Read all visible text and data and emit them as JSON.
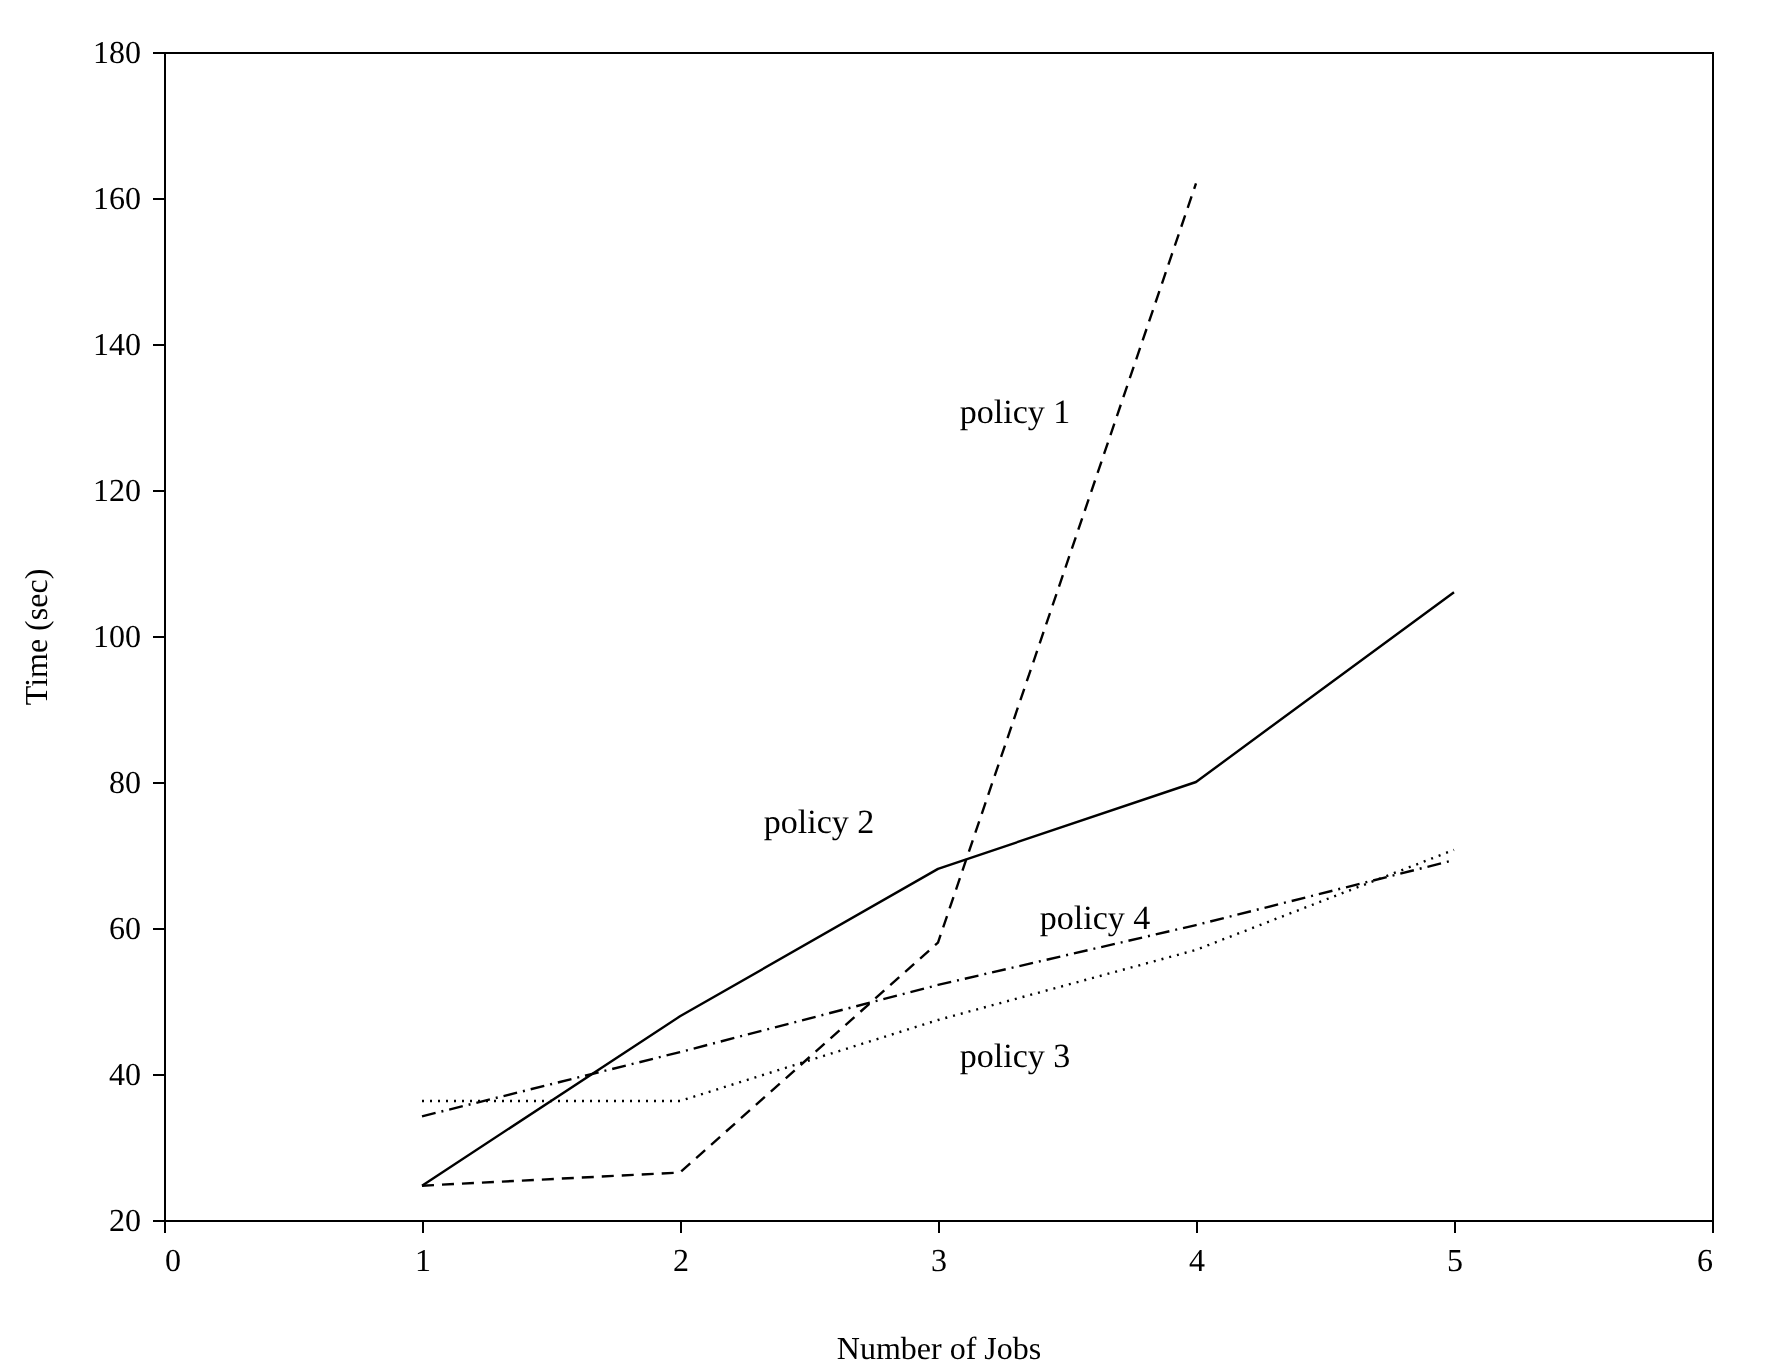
{
  "chart_data": {
    "type": "line",
    "xlabel": "Number of Jobs",
    "ylabel": "Time (sec)",
    "x": [
      1,
      2,
      3,
      4,
      5
    ],
    "series": [
      {
        "name": "policy 1",
        "color": "#000000",
        "line_style": "dashed",
        "x": [
          1,
          2,
          3,
          4
        ],
        "values": [
          24.7,
          26.5,
          58,
          162
        ]
      },
      {
        "name": "policy 2",
        "color": "#000000",
        "line_style": "solid",
        "values": [
          24.7,
          47.9,
          68.1,
          80,
          106
        ]
      },
      {
        "name": "policy 3",
        "color": "#000000",
        "line_style": "dotted",
        "values": [
          36.3,
          36.3,
          47.4,
          57,
          70.7
        ]
      },
      {
        "name": "policy 4",
        "color": "#000000",
        "line_style": "dashdot",
        "values": [
          34.2,
          43,
          52.2,
          60.4,
          69.3
        ]
      }
    ],
    "xlim": [
      0,
      6
    ],
    "xticks": [
      0,
      1,
      2,
      3,
      4,
      5,
      6
    ],
    "ylim": [
      20,
      180
    ],
    "yticks": [
      20,
      40,
      60,
      80,
      100,
      120,
      140,
      160,
      180
    ],
    "grid": false,
    "legend": false,
    "marker": "none"
  }
}
